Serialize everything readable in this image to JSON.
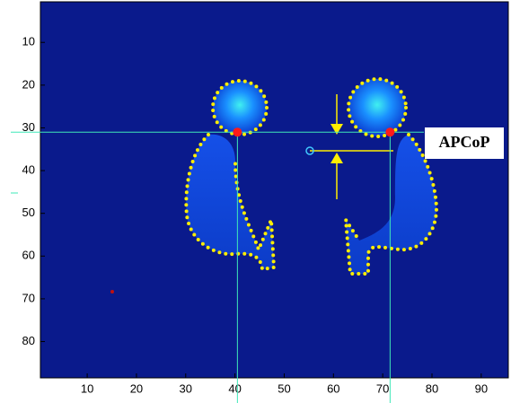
{
  "chart_data": {
    "type": "image",
    "xlim": [
      0.5,
      95.5
    ],
    "ylim": [
      0.5,
      88.5
    ],
    "y_reversed": true,
    "xticks": [
      10,
      20,
      30,
      40,
      50,
      60,
      70,
      80,
      90
    ],
    "yticks": [
      10,
      20,
      30,
      40,
      50,
      60,
      70,
      80
    ],
    "background": "#0a1a8c",
    "annotation": "APCoP",
    "guide_lines": {
      "x": [
        40.5,
        71.5
      ],
      "y": [
        31
      ],
      "color": "#3fe8b8"
    },
    "markers": {
      "x": [
        40.5,
        71.5
      ],
      "y": [
        31,
        31
      ],
      "color": "#ff1a1a"
    }
  }
}
